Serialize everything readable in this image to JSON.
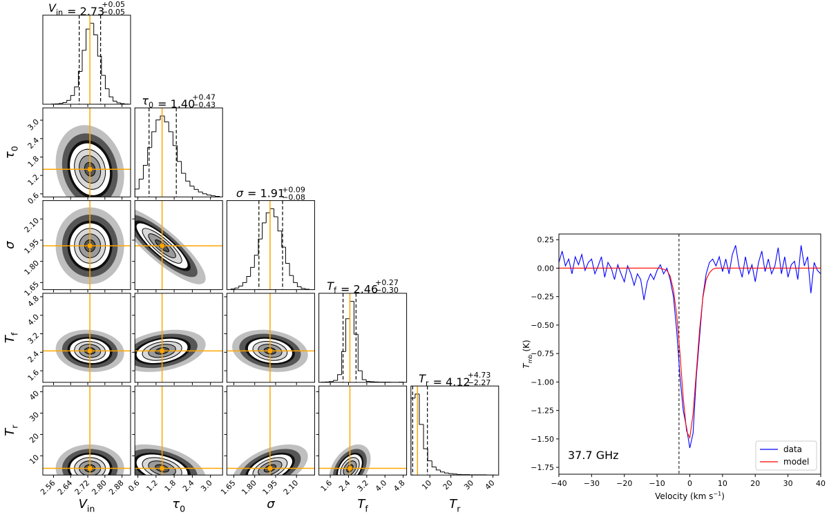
{
  "chart_data": [
    {
      "type": "corner",
      "median_color": "#ffa500",
      "parameters": [
        {
          "symbol": "V",
          "subscript": "in",
          "lim": [
            2.51,
            2.92
          ],
          "ticks": [
            2.56,
            2.64,
            2.72,
            {
              "value": 2.8,
              "label": "2.80"
            },
            2.88
          ],
          "median": 2.73,
          "quantiles": [
            2.68,
            2.78
          ],
          "title": {
            "text": "= 2.73",
            "plus": "+0.05",
            "minus": "−0.05"
          },
          "bins": [
            2.55,
            2.568,
            2.586,
            2.604,
            2.622,
            2.64,
            2.658,
            2.676,
            2.694,
            2.712,
            2.73,
            2.748,
            2.766,
            2.784,
            2.802,
            2.82,
            2.838,
            2.856,
            2.874,
            2.892,
            2.91
          ],
          "counts": [
            1,
            2,
            4,
            9,
            20,
            45,
            90,
            170,
            280,
            390,
            420,
            360,
            250,
            150,
            80,
            38,
            16,
            7,
            3,
            1
          ]
        },
        {
          "symbol": "τ",
          "subscript": "0",
          "lim": [
            0.5,
            3.4
          ],
          "ticks": [
            0.6,
            1.2,
            1.8,
            2.4,
            {
              "value": 3.0,
              "label": "3.0"
            }
          ],
          "median": 1.4,
          "quantiles": [
            0.97,
            1.87
          ],
          "title": {
            "text": "= 1.40",
            "plus": "+0.47",
            "minus": "−0.43"
          },
          "bins": [
            0.5,
            0.64,
            0.78,
            0.92,
            1.06,
            1.2,
            1.34,
            1.48,
            1.62,
            1.76,
            1.9,
            2.04,
            2.18,
            2.32,
            2.46,
            2.6,
            2.74,
            2.88,
            3.02,
            3.16,
            3.3
          ],
          "counts": [
            40,
            90,
            160,
            250,
            330,
            390,
            410,
            380,
            330,
            260,
            180,
            120,
            80,
            55,
            38,
            25,
            16,
            10,
            6,
            3
          ]
        },
        {
          "symbol": "σ",
          "lim": [
            1.6,
            2.23
          ],
          "ticks": [
            1.65,
            {
              "value": 1.8,
              "label": "1.80"
            },
            1.95,
            {
              "value": 2.1,
              "label": "2.10"
            }
          ],
          "median": 1.91,
          "quantiles": [
            1.83,
            2.0
          ],
          "title": {
            "text": "= 1.91",
            "plus": "+0.09",
            "minus": "−0.08"
          },
          "bins": [
            1.63,
            1.658,
            1.686,
            1.714,
            1.742,
            1.77,
            1.798,
            1.826,
            1.854,
            1.882,
            1.91,
            1.938,
            1.966,
            1.994,
            2.022,
            2.05,
            2.078,
            2.106,
            2.134,
            2.162,
            2.19
          ],
          "counts": [
            3,
            8,
            18,
            35,
            65,
            110,
            170,
            250,
            330,
            380,
            400,
            360,
            290,
            210,
            130,
            70,
            35,
            15,
            6,
            2
          ]
        },
        {
          "symbol": "T",
          "subscript": "f",
          "lim": [
            1.1,
            4.95
          ],
          "ticks": [
            1.6,
            2.4,
            3.2,
            {
              "value": 4.0,
              "label": "4.0"
            },
            4.8
          ],
          "median": 2.46,
          "quantiles": [
            2.16,
            2.73
          ],
          "title": {
            "text": "= 2.46",
            "plus": "+0.27",
            "minus": "−0.30"
          },
          "bins": [
            1.2,
            1.38,
            1.56,
            1.74,
            1.92,
            2.1,
            2.28,
            2.46,
            2.64,
            2.82,
            3.0,
            3.18,
            3.36,
            3.54,
            3.72,
            3.9,
            4.08,
            4.26,
            4.44,
            4.62,
            4.8
          ],
          "counts": [
            1,
            2,
            4,
            10,
            40,
            160,
            330,
            420,
            250,
            60,
            14,
            5,
            3,
            2,
            1,
            1,
            1,
            0,
            0,
            1
          ]
        },
        {
          "symbol": "T",
          "subscript": "r",
          "lim": [
            1.0,
            42.7
          ],
          "ticks": [
            10,
            20,
            30,
            40
          ],
          "median": 4.12,
          "quantiles": [
            1.85,
            8.85
          ],
          "title": {
            "text": "= 4.12",
            "plus": "+4.73",
            "minus": "−2.27"
          },
          "bins": [
            1,
            3,
            5,
            7,
            9,
            11,
            13,
            15,
            17,
            19,
            21,
            23,
            25,
            27,
            29,
            31,
            33,
            35,
            37,
            39,
            41
          ],
          "counts": [
            380,
            400,
            250,
            130,
            70,
            40,
            25,
            15,
            10,
            7,
            5,
            3,
            2,
            2,
            1,
            1,
            1,
            1,
            0,
            0
          ]
        }
      ],
      "correlations": [
        [],
        [
          -0.15
        ],
        [
          0.0,
          -0.85
        ],
        [
          -0.1,
          0.3,
          -0.2
        ],
        [
          0.0,
          -0.4,
          0.5,
          0.4
        ]
      ]
    },
    {
      "type": "line",
      "xlabel": {
        "text": "Velocity (km s",
        "superscript": "−1",
        "end": ")"
      },
      "ylabel": {
        "symbol": "T",
        "subscript": "mb",
        "text": "(K)"
      },
      "annotation": "37.7 GHz",
      "legend": "lower right",
      "vline": -3.3,
      "xlim": [
        -40,
        40
      ],
      "xticks": [
        {
          "value": -40,
          "label": "−40"
        },
        {
          "value": -30,
          "label": "−30"
        },
        {
          "value": -20,
          "label": "−20"
        },
        {
          "value": -10,
          "label": "−10"
        },
        0,
        10,
        20,
        30,
        40
      ],
      "ylim": [
        -1.81,
        0.3
      ],
      "yticks": [
        0.25,
        {
          "value": 0,
          "label": "0.00"
        },
        {
          "value": -0.25,
          "label": "−0.25"
        },
        {
          "value": -0.5,
          "label": "−0.50"
        },
        {
          "value": -0.75,
          "label": "−0.75"
        },
        {
          "value": -1.0,
          "label": "−1.00"
        },
        {
          "value": -1.25,
          "label": "−1.25"
        },
        {
          "value": -1.5,
          "label": "−1.50"
        },
        {
          "value": -1.75,
          "label": "−1.75"
        }
      ],
      "x": [
        -40,
        -39,
        -38,
        -37,
        -36,
        -35,
        -34,
        -33,
        -32,
        -31,
        -30,
        -29,
        -28,
        -27,
        -26,
        -25,
        -24,
        -23,
        -22,
        -21,
        -20,
        -19,
        -18,
        -17,
        -16,
        -15,
        -14,
        -13,
        -12,
        -11,
        -10,
        -9,
        -8,
        -7,
        -6,
        -5,
        -4,
        -3,
        -2,
        -1,
        0,
        1,
        2,
        3,
        4,
        5,
        6,
        7,
        8,
        9,
        10,
        11,
        12,
        13,
        14,
        15,
        16,
        17,
        18,
        19,
        20,
        21,
        22,
        23,
        24,
        25,
        26,
        27,
        28,
        29,
        30,
        31,
        32,
        33,
        34,
        35,
        36,
        37,
        38,
        39,
        40
      ],
      "series": [
        {
          "name": "data",
          "color": "#0000ff",
          "values": [
            0.05,
            0.15,
            0.02,
            0.08,
            -0.05,
            0.1,
            0.03,
            0.12,
            -0.02,
            0.05,
            0.08,
            -0.05,
            0.02,
            0.1,
            -0.08,
            0.05,
            0.0,
            -0.1,
            0.03,
            -0.05,
            -0.12,
            0.02,
            -0.05,
            -0.15,
            -0.05,
            -0.1,
            -0.28,
            -0.12,
            -0.05,
            -0.1,
            -0.02,
            0.03,
            -0.05,
            0.0,
            -0.1,
            -0.25,
            -0.55,
            -0.95,
            -1.25,
            -1.4,
            -1.58,
            -1.45,
            -0.95,
            -0.6,
            -0.25,
            -0.05,
            0.05,
            0.08,
            0.02,
            0.1,
            -0.03,
            0.08,
            -0.05,
            0.12,
            0.2,
            0.02,
            -0.08,
            0.1,
            -0.05,
            0.03,
            -0.12,
            0.05,
            0.15,
            -0.03,
            0.08,
            -0.05,
            0.02,
            0.18,
            -0.05,
            0.1,
            -0.08,
            0.03,
            0.06,
            -0.1,
            0.2,
            0.02,
            0.1,
            -0.22,
            0.05,
            -0.02,
            -0.05
          ]
        },
        {
          "name": "model",
          "color": "#ff0000",
          "values": [
            0,
            0,
            0,
            0,
            0,
            0,
            0,
            0,
            0,
            0,
            0,
            0,
            0,
            0,
            0,
            0,
            0,
            0,
            0,
            0,
            0,
            0,
            0,
            0,
            0,
            0,
            0,
            0,
            0,
            0,
            0,
            0,
            -0.01,
            -0.02,
            -0.07,
            -0.19,
            -0.41,
            -0.75,
            -1.14,
            -1.43,
            -1.49,
            -1.28,
            -0.91,
            -0.54,
            -0.26,
            -0.1,
            -0.04,
            -0.01,
            0,
            0,
            0,
            0,
            0,
            0,
            0,
            0,
            0,
            0,
            0,
            0,
            0,
            0,
            0,
            0,
            0,
            0,
            0,
            0,
            0,
            0,
            0,
            0,
            0,
            0,
            0,
            0,
            0,
            0,
            0,
            0,
            0
          ]
        }
      ]
    }
  ]
}
